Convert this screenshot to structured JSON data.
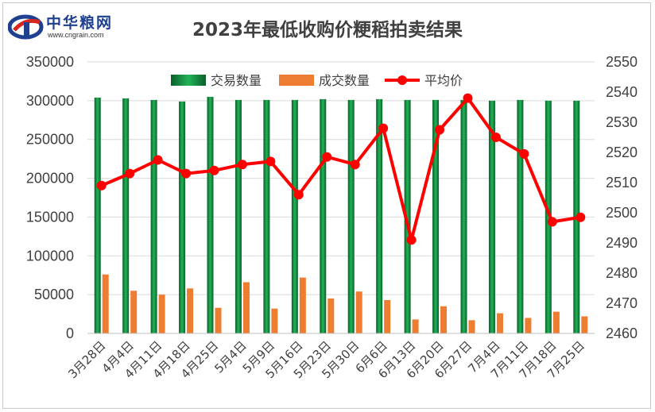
{
  "logo": {
    "name": "中华粮网",
    "url": "www.cngrain.com"
  },
  "colors": {
    "volume": "#1e9e4a",
    "deal": "#ed7d31",
    "price": "#ff0000",
    "grid": "#d9d9d9",
    "text": "#404040"
  },
  "chart_data": {
    "type": "bar",
    "title": "2023年最低收购价粳稻拍卖结果",
    "categories": [
      "3月28日",
      "4月4日",
      "4月11日",
      "4月18日",
      "4月25日",
      "5月4日",
      "5月9日",
      "5月16日",
      "5月23日",
      "5月30日",
      "6月6日",
      "6月13日",
      "6月20日",
      "6月27日",
      "7月4日",
      "7月11日",
      "7月18日",
      "7月25日"
    ],
    "series": [
      {
        "name": "交易数量",
        "axis": "left",
        "type": "bar",
        "values": [
          304000,
          303000,
          301000,
          299000,
          305000,
          301000,
          301000,
          301000,
          302000,
          301000,
          302000,
          301000,
          301000,
          301000,
          300000,
          301000,
          300000,
          300000
        ]
      },
      {
        "name": "成交数量",
        "axis": "left",
        "type": "bar",
        "values": [
          76000,
          55000,
          50000,
          58000,
          33000,
          66000,
          32000,
          72000,
          45000,
          54000,
          43000,
          18000,
          35000,
          17000,
          26000,
          20000,
          28000,
          22000
        ]
      },
      {
        "name": "平均价",
        "axis": "right",
        "type": "line",
        "values": [
          2509,
          2513,
          2517.5,
          2513,
          2514,
          2516,
          2517,
          2506,
          2518.5,
          2516,
          2528,
          2491,
          2527.5,
          2538,
          2525,
          2519.5,
          2497,
          2498.5
        ]
      }
    ],
    "y_left": {
      "min": 0,
      "max": 350000,
      "ticks": [
        0,
        50000,
        100000,
        150000,
        200000,
        250000,
        300000,
        350000
      ]
    },
    "y_right": {
      "min": 2460,
      "max": 2550,
      "ticks": [
        2460,
        2470,
        2480,
        2490,
        2500,
        2510,
        2520,
        2530,
        2540,
        2550
      ]
    },
    "legend_position": "top-right",
    "grid": true
  }
}
